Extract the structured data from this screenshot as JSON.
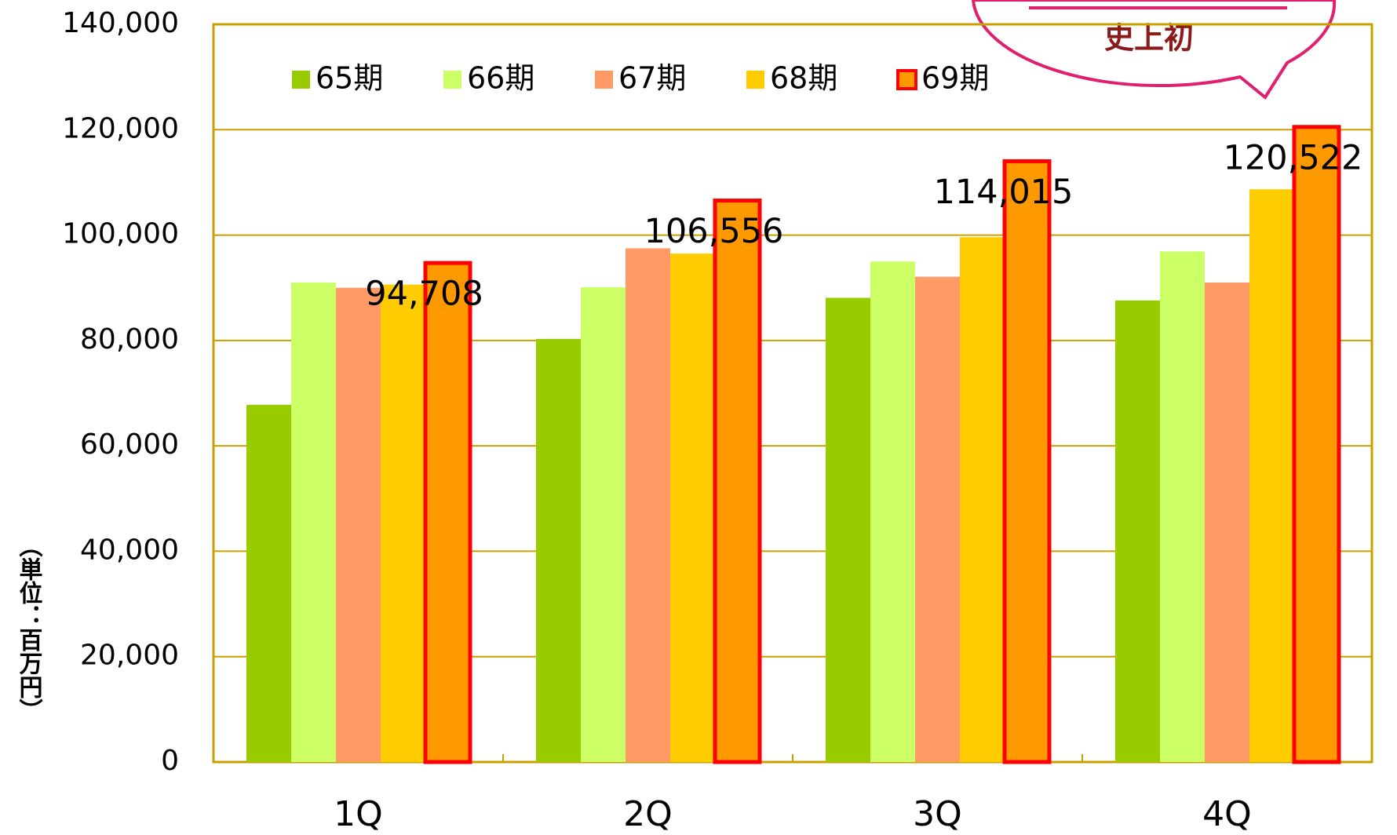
{
  "chart_data": {
    "type": "bar",
    "y_label": "（単位：百万円）",
    "annotation": "史上初",
    "categories": [
      "1Q",
      "2Q",
      "3Q",
      "4Q"
    ],
    "series": [
      {
        "name": "65期",
        "color": "#99cc00",
        "values": [
          67800,
          80300,
          88100,
          87600
        ]
      },
      {
        "name": "66期",
        "color": "#ccff66",
        "values": [
          91000,
          90100,
          95000,
          96900
        ]
      },
      {
        "name": "67期",
        "color": "#ff9966",
        "values": [
          90000,
          97500,
          92100,
          91000
        ]
      },
      {
        "name": "68期",
        "color": "#ffcc00",
        "values": [
          90600,
          96500,
          99600,
          108700
        ]
      },
      {
        "name": "69期",
        "color": "#ff9900",
        "stroke": "#ff0000",
        "values": [
          94708,
          106556,
          114015,
          120522
        ],
        "value_labels": [
          "94,708",
          "106,556",
          "114,015",
          "120,522"
        ]
      }
    ],
    "ylim": [
      0,
      140000
    ],
    "yticks": [
      0,
      {
        "value": 20000,
        "label": "20,000"
      },
      {
        "value": 40000,
        "label": "40,000"
      },
      {
        "value": 60000,
        "label": "60,000"
      },
      {
        "value": 80000,
        "label": "80,000"
      },
      {
        "value": 100000,
        "label": "100,000"
      },
      {
        "value": 120000,
        "label": "120,000"
      },
      {
        "value": 140000,
        "label": "140,000"
      }
    ],
    "grid": true
  }
}
